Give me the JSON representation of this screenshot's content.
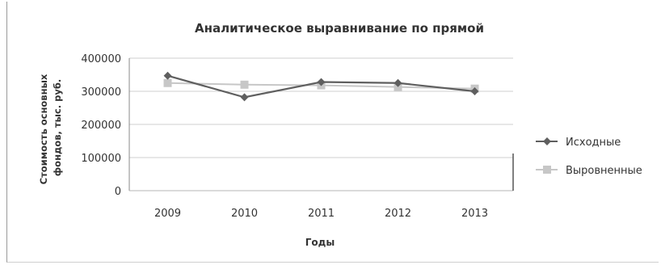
{
  "chart_data": {
    "type": "line",
    "title": "Аналитическое выравнивание по прямой",
    "xlabel": "Годы",
    "ylabel_line1": "Стоимость основных",
    "ylabel_line2": "фондов, тыс. руб.",
    "categories": [
      "2009",
      "2010",
      "2011",
      "2012",
      "2013"
    ],
    "ylim": [
      0,
      400000
    ],
    "yticks": [
      "0",
      "100000",
      "200000",
      "300000",
      "400000"
    ],
    "grid": true,
    "legend_position": "right",
    "series": [
      {
        "name": "Исходные",
        "values": [
          347000,
          282000,
          328000,
          325000,
          300000
        ],
        "color": "#5f5f5f",
        "marker": "diamond"
      },
      {
        "name": "Выровненные",
        "values": [
          325000,
          320000,
          318000,
          313000,
          308000
        ],
        "color": "#c7c7c7",
        "marker": "square"
      }
    ]
  }
}
